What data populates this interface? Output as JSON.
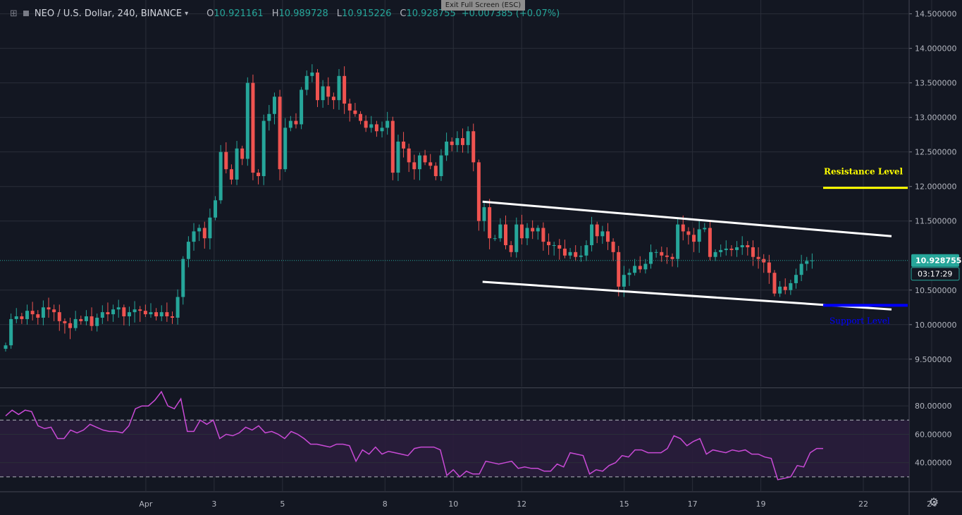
{
  "header": {
    "symbol": "NEO / U.S. Dollar, 240, BINANCE",
    "o_label": "O",
    "o_value": "10.921161",
    "h_label": "H",
    "h_value": "10.989728",
    "l_label": "L",
    "l_value": "10.915226",
    "c_label": "C",
    "c_value": "10.928755",
    "change": "+0.007385 (+0.07%)"
  },
  "tooltip": "Exit Full Screen (ESC)",
  "colors": {
    "background": "#131722",
    "grid": "#2a2e39",
    "up": "#26a69a",
    "down": "#ef5350",
    "rsi_line": "#c94ad6",
    "rsi_band": "#2a1d3c",
    "channel": "#ffffff",
    "resistance": "#ffff00",
    "support": "#0000ff",
    "price_tag": "#26a69a"
  },
  "chart_data": [
    {
      "type": "candlestick",
      "title": "NEO / U.S. Dollar, 240, BINANCE",
      "timeframe_hours": 4,
      "x_ticks": [
        "Apr",
        "3",
        "5",
        "8",
        "10",
        "12",
        "15",
        "17",
        "19",
        "22",
        "24"
      ],
      "x_tick_dates": [
        "2019-04-01",
        "2019-04-03",
        "2019-04-05",
        "2019-04-08",
        "2019-04-10",
        "2019-04-12",
        "2019-04-15",
        "2019-04-17",
        "2019-04-19",
        "2019-04-22",
        "2019-04-24"
      ],
      "y_ticks": [
        "14.500000",
        "14.000000",
        "13.500000",
        "13.000000",
        "12.500000",
        "12.000000",
        "11.500000",
        "10.500000",
        "10.000000",
        "9.500000"
      ],
      "ylim": [
        9.1,
        14.7
      ],
      "grid": true,
      "ohlc_close": [
        9.7,
        10.08,
        10.12,
        10.08,
        10.2,
        10.15,
        10.1,
        10.25,
        10.22,
        10.18,
        10.05,
        10.02,
        9.95,
        10.08,
        10.05,
        10.12,
        9.98,
        10.1,
        10.18,
        10.15,
        10.22,
        10.25,
        10.12,
        10.18,
        10.22,
        10.2,
        10.15,
        10.18,
        10.12,
        10.18,
        10.12,
        10.1,
        10.4,
        10.95,
        11.2,
        11.35,
        11.4,
        11.25,
        11.55,
        11.8,
        12.5,
        12.25,
        12.1,
        12.55,
        12.4,
        13.5,
        12.2,
        12.15,
        12.95,
        13.05,
        13.3,
        12.25,
        12.85,
        12.95,
        12.9,
        13.4,
        13.6,
        13.65,
        13.25,
        13.45,
        13.3,
        13.25,
        13.6,
        13.2,
        13.1,
        13.05,
        12.95,
        12.85,
        12.9,
        12.8,
        12.85,
        12.95,
        12.2,
        12.65,
        12.55,
        12.35,
        12.25,
        12.45,
        12.35,
        12.3,
        12.15,
        12.45,
        12.65,
        12.6,
        12.7,
        12.6,
        12.8,
        12.35,
        11.5,
        11.7,
        11.25,
        11.25,
        11.45,
        11.15,
        11.05,
        11.45,
        11.25,
        11.4,
        11.35,
        11.4,
        11.2,
        11.15,
        11.15,
        11.1,
        11.0,
        11.05,
        10.98,
        11.0,
        11.15,
        11.45,
        11.28,
        11.35,
        11.2,
        11.05,
        10.55,
        10.72,
        10.75,
        10.85,
        10.8,
        10.88,
        11.05,
        11.05,
        11.0,
        10.98,
        10.95,
        11.45,
        11.35,
        11.3,
        11.2,
        11.38,
        11.4,
        10.98,
        11.05,
        11.08,
        11.1,
        11.08,
        11.12,
        11.15,
        11.12,
        10.98,
        10.95,
        10.9,
        10.75,
        10.45,
        10.55,
        10.5,
        10.6,
        10.72,
        10.88,
        10.92,
        10.93
      ],
      "current_price": "10.928755",
      "countdown": "03:17:29",
      "channel": {
        "upper": [
          [
            "2019-04-11 00:00",
            11.78
          ],
          [
            "2019-04-22 00:00",
            11.28
          ]
        ],
        "lower": [
          [
            "2019-04-11 00:00",
            10.62
          ],
          [
            "2019-04-22 00:00",
            10.22
          ]
        ]
      },
      "levels": [
        {
          "label": "Resistance Level",
          "value": 11.98
        },
        {
          "label": "Support Level",
          "value": 10.28
        }
      ]
    },
    {
      "type": "line",
      "indicator": "RSI",
      "y_ticks": [
        "80.00000",
        "60.00000",
        "40.00000"
      ],
      "ylim": [
        20,
        92
      ],
      "bands": [
        70,
        30
      ],
      "values": [
        73,
        77,
        74,
        77,
        76,
        66,
        64,
        65,
        57,
        57,
        63,
        61,
        63,
        67,
        65,
        63,
        62,
        62,
        61,
        66,
        78,
        80,
        80,
        84,
        90,
        80,
        78,
        85,
        62,
        62,
        70,
        67,
        70,
        57,
        60,
        59,
        61,
        65,
        63,
        66,
        61,
        62,
        60,
        57,
        62,
        60,
        57,
        53,
        53,
        52,
        51,
        53,
        53,
        52,
        41,
        49,
        46,
        51,
        46,
        48,
        47,
        46,
        45,
        50,
        51,
        51,
        51,
        49,
        31,
        35,
        30,
        34,
        32,
        32,
        41,
        40,
        39,
        40,
        41,
        36,
        37,
        36,
        36,
        34,
        34,
        39,
        37,
        47,
        46,
        45,
        32,
        35,
        34,
        38,
        40,
        45,
        44,
        49,
        49,
        47,
        47,
        47,
        50,
        59,
        57,
        52,
        55,
        57,
        46,
        49,
        48,
        47,
        49,
        48,
        49,
        46,
        46,
        44,
        43,
        28,
        29,
        30,
        38,
        37,
        47,
        50,
        50
      ]
    }
  ]
}
